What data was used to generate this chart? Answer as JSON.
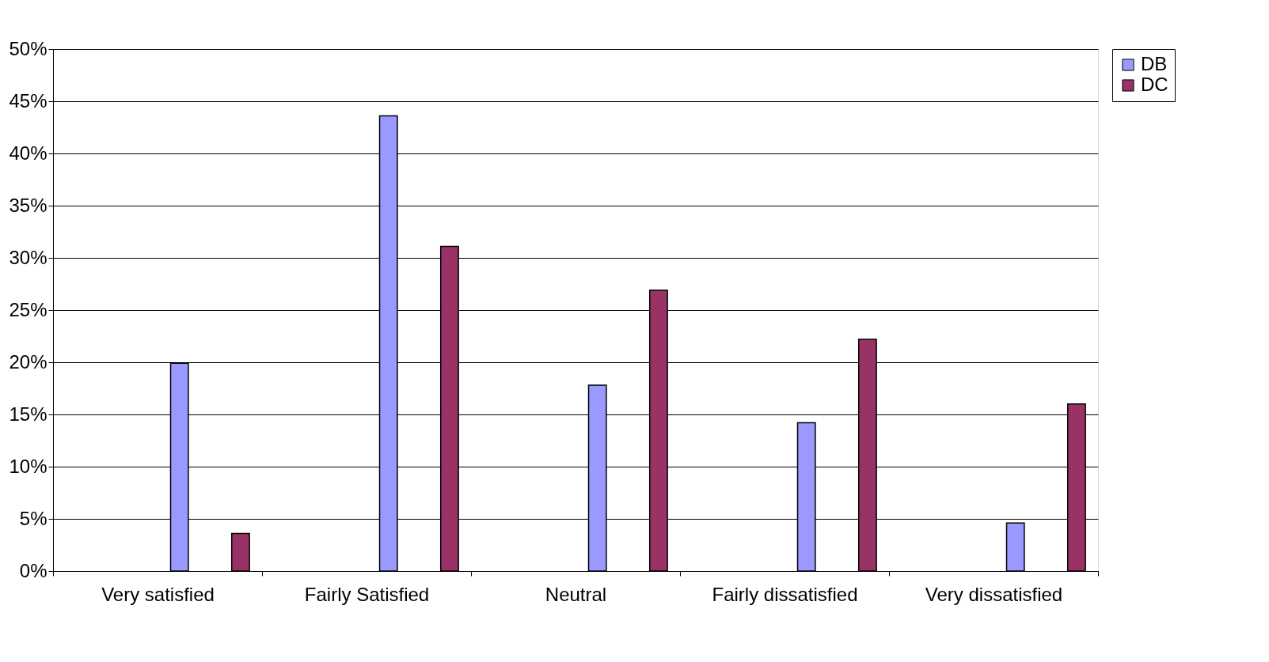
{
  "chart_data": {
    "type": "bar",
    "categories": [
      "Very satisfied",
      "Fairly Satisfied",
      "Neutral",
      "Fairly dissatisfied",
      "Very dissatisfied"
    ],
    "series": [
      {
        "name": "DB",
        "color": "#9999ff",
        "values": [
          19.9,
          43.6,
          17.8,
          14.2,
          4.6
        ]
      },
      {
        "name": "DC",
        "color": "#993366",
        "values": [
          3.6,
          31.1,
          26.9,
          22.2,
          16.0
        ]
      }
    ],
    "ylim": [
      0,
      50
    ],
    "yticks": [
      {
        "value": 0,
        "label": "0%"
      },
      {
        "value": 5,
        "label": "5%"
      },
      {
        "value": 10,
        "label": "10%"
      },
      {
        "value": 15,
        "label": "15%"
      },
      {
        "value": 20,
        "label": "20%"
      },
      {
        "value": 25,
        "label": "25%"
      },
      {
        "value": 30,
        "label": "30%"
      },
      {
        "value": 35,
        "label": "35%"
      },
      {
        "value": 40,
        "label": "40%"
      },
      {
        "value": 45,
        "label": "45%"
      },
      {
        "value": 50,
        "label": "50%"
      }
    ],
    "grid": "y",
    "legend": "right"
  }
}
